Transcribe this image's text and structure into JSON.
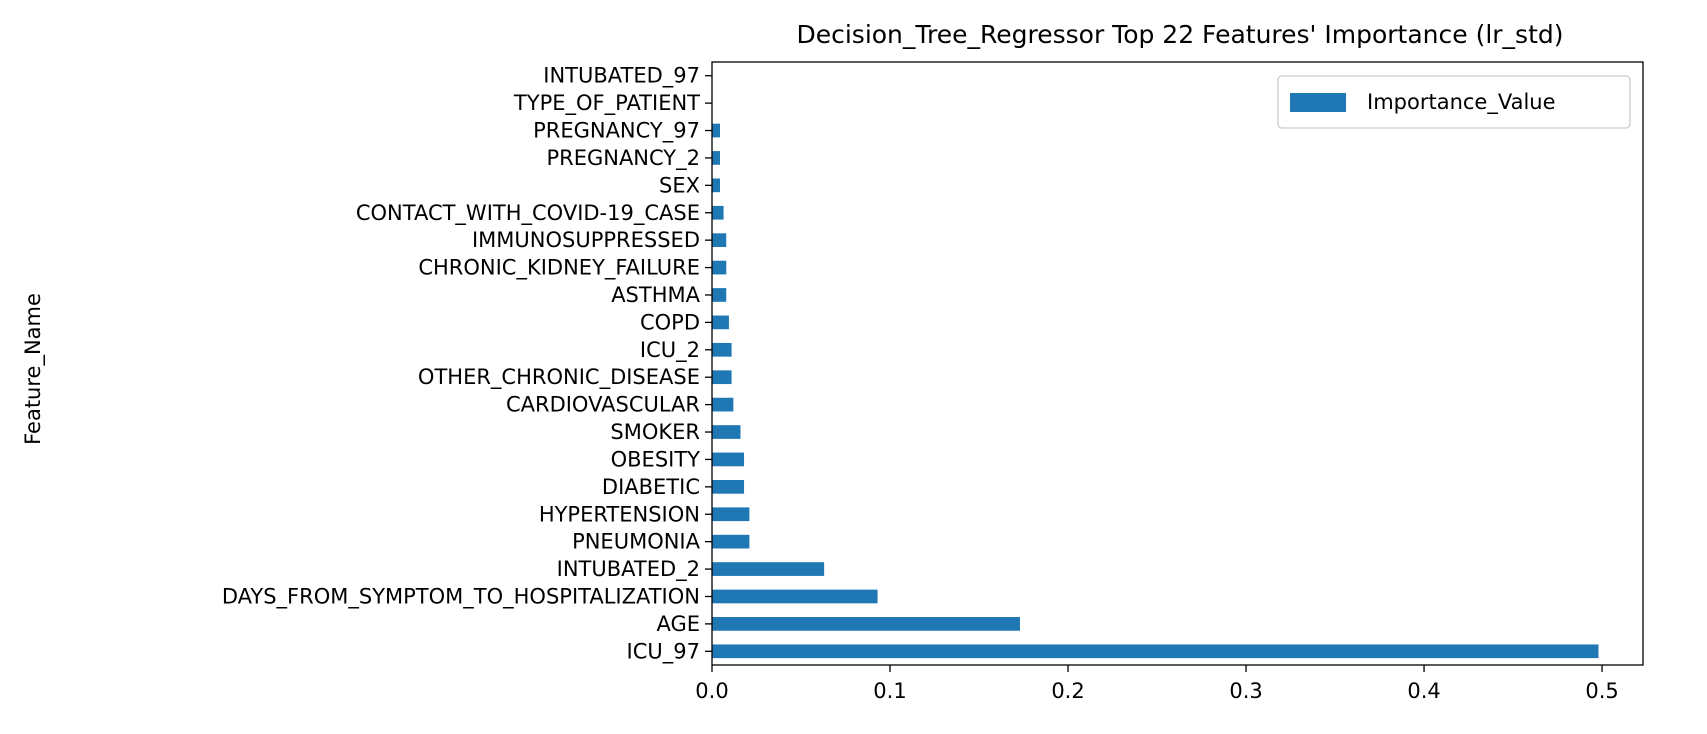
{
  "chart_data": {
    "type": "bar",
    "orientation": "horizontal",
    "title": "Decision_Tree_Regressor Top 22 Features' Importance (lr_std)",
    "xlabel": "",
    "ylabel": "Feature_Name",
    "xlim": [
      0.0,
      0.523
    ],
    "xticks": [
      "0.0",
      "0.1",
      "0.2",
      "0.3",
      "0.4",
      "0.5"
    ],
    "legend_position": "top-right",
    "grid": false,
    "bar_color": "#1f77b4",
    "categories": [
      "ICU_97",
      "AGE",
      "DAYS_FROM_SYMPTOM_TO_HOSPITALIZATION",
      "INTUBATED_2",
      "PNEUMONIA",
      "HYPERTENSION",
      "DIABETIC",
      "OBESITY",
      "SMOKER",
      "CARDIOVASCULAR",
      "OTHER_CHRONIC_DISEASE",
      "ICU_2",
      "COPD",
      "ASTHMA",
      "CHRONIC_KIDNEY_FAILURE",
      "IMMUNOSUPPRESSED",
      "CONTACT_WITH_COVID-19_CASE",
      "SEX",
      "PREGNANCY_2",
      "PREGNANCY_97",
      "TYPE_OF_PATIENT",
      "INTUBATED_97"
    ],
    "series": [
      {
        "name": "Importance_Value",
        "values": [
          0.498,
          0.173,
          0.093,
          0.063,
          0.021,
          0.021,
          0.018,
          0.018,
          0.016,
          0.012,
          0.011,
          0.011,
          0.0095,
          0.008,
          0.008,
          0.008,
          0.0065,
          0.0045,
          0.0045,
          0.0045,
          0.0,
          0.0
        ]
      }
    ]
  }
}
